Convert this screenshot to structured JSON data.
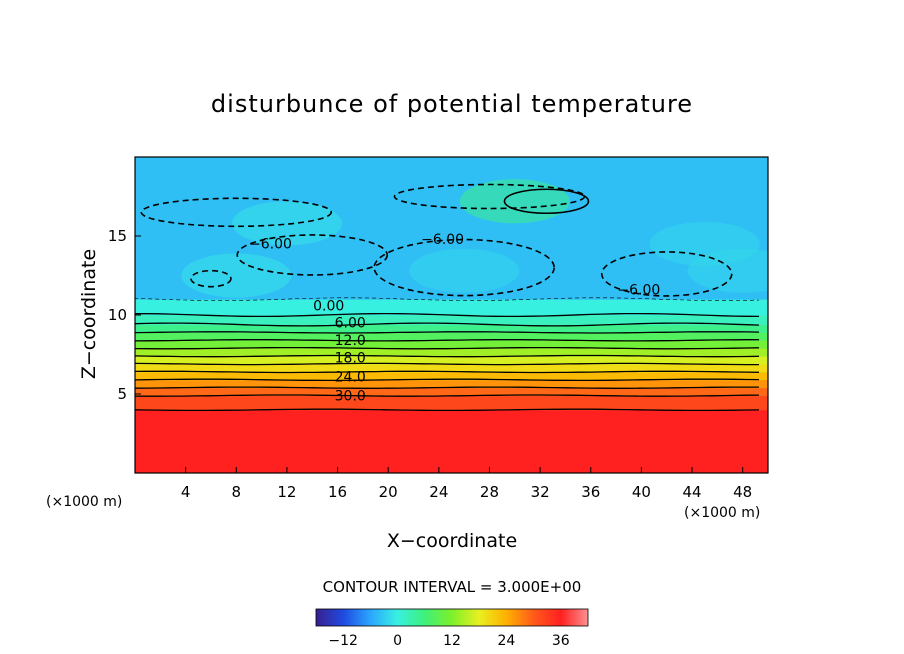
{
  "chart_data": {
    "type": "heatmap",
    "title": "disturbunce of potential temperature",
    "xlabel": "X−coordinate",
    "ylabel": "Z−coordinate",
    "x_unit_left": "(×1000 m)",
    "x_unit_right": "(×1000 m)",
    "xlim": [
      0,
      50
    ],
    "ylim": [
      0,
      20
    ],
    "x_ticks": [
      4,
      8,
      12,
      16,
      20,
      24,
      28,
      32,
      36,
      40,
      44,
      48
    ],
    "y_ticks": [
      5,
      10,
      15
    ],
    "contour_interval_text": "CONTOUR INTERVAL = 3.000E+00",
    "contour_interval": 3.0,
    "levels": [
      -6,
      0,
      6,
      9,
      12,
      15,
      18,
      21,
      24,
      27,
      30,
      33,
      36
    ],
    "contour_labels": [
      {
        "text": "−6.00",
        "x": 10.7,
        "z": 14.2
      },
      {
        "text": "−6.00",
        "x": 24.3,
        "z": 14.5
      },
      {
        "text": "−6.00",
        "x": 39.8,
        "z": 11.3
      },
      {
        "text": "0.00",
        "x": 15.3,
        "z": 10.3
      },
      {
        "text": "6.00",
        "x": 17.0,
        "z": 9.2
      },
      {
        "text": "12.0",
        "x": 17.0,
        "z": 8.1
      },
      {
        "text": "18.0",
        "x": 17.0,
        "z": 7.0
      },
      {
        "text": "24.0",
        "x": 17.0,
        "z": 5.8
      },
      {
        "text": "30.0",
        "x": 17.0,
        "z": 4.6
      }
    ],
    "bands": [
      {
        "z_top": 4.0,
        "value": 36.0
      },
      {
        "z_top": 4.9,
        "value": 32.0
      },
      {
        "z_top": 5.4,
        "value": 29.0
      },
      {
        "z_top": 5.9,
        "value": 26.0
      },
      {
        "z_top": 6.4,
        "value": 23.0
      },
      {
        "z_top": 6.9,
        "value": 20.0
      },
      {
        "z_top": 7.4,
        "value": 17.0
      },
      {
        "z_top": 7.9,
        "value": 14.0
      },
      {
        "z_top": 8.4,
        "value": 11.0
      },
      {
        "z_top": 8.9,
        "value": 8.0
      },
      {
        "z_top": 9.4,
        "value": 5.0
      },
      {
        "z_top": 10.0,
        "value": 2.0
      },
      {
        "z_top": 11.0,
        "value": 0.0
      },
      {
        "z_top": 20.0,
        "value": -4.0
      }
    ],
    "colorbar": {
      "range": [
        -18,
        42
      ],
      "tick_values": [
        -12,
        0,
        12,
        24,
        36
      ],
      "tick_labels": [
        "−12",
        "0",
        "12",
        "24",
        "36"
      ]
    },
    "colorscale": [
      "#3a1f8f",
      "#1f4ae0",
      "#2aa6ff",
      "#38f0e0",
      "#3ef07a",
      "#7ef02a",
      "#e8f020",
      "#ffb000",
      "#ff5a1a",
      "#ff2020",
      "#ff9090"
    ]
  }
}
